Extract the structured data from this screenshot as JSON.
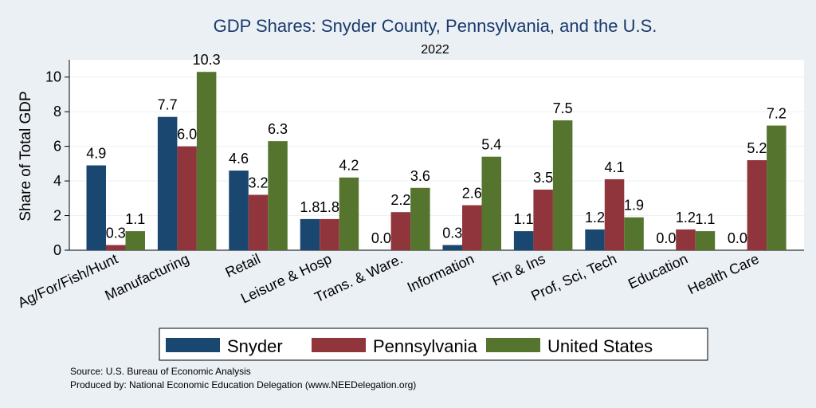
{
  "chart_data": {
    "type": "bar",
    "title": "GDP Shares: Snyder County, Pennsylvania, and the U.S.",
    "subtitle": "2022",
    "xlabel": "",
    "ylabel": "Share of Total GDP",
    "ylim": [
      0,
      11
    ],
    "yticks": [
      0,
      2,
      4,
      6,
      8,
      10
    ],
    "grid": true,
    "legend_position": "bottom",
    "categories": [
      "Ag/For/Fish/Hunt",
      "Manufacturing",
      "Retail",
      "Leisure & Hosp",
      "Trans. & Ware.",
      "Information",
      "Fin & Ins",
      "Prof, Sci, Tech",
      "Education",
      "Health Care"
    ],
    "series": [
      {
        "name": "Snyder",
        "color": "#1a476f",
        "values": [
          4.9,
          7.7,
          4.6,
          1.8,
          0.0,
          0.3,
          1.1,
          1.2,
          0.0,
          0.0
        ],
        "labels": [
          "4.9",
          "7.7",
          "4.6",
          "1.8",
          "0.0",
          "0.3",
          "1.1",
          "1.2",
          "0.0",
          "0.0"
        ]
      },
      {
        "name": "Pennsylvania",
        "color": "#90353b",
        "values": [
          0.3,
          6.0,
          3.2,
          1.8,
          2.2,
          2.6,
          3.5,
          4.1,
          1.2,
          5.2
        ],
        "labels": [
          "0.3",
          "6.0",
          "3.2",
          "1.8",
          "2.2",
          "2.6",
          "3.5",
          "4.1",
          "1.2",
          "5.2"
        ]
      },
      {
        "name": "United States",
        "color": "#55752f",
        "values": [
          1.1,
          10.3,
          6.3,
          4.2,
          3.6,
          5.4,
          7.5,
          1.9,
          1.1,
          7.2
        ],
        "labels": [
          "1.1",
          "10.3",
          "6.3",
          "4.2",
          "3.6",
          "5.4",
          "7.5",
          "1.9",
          "1.1",
          "7.2"
        ]
      }
    ]
  },
  "notes": {
    "source": "Source: U.S. Bureau of Economic Analysis",
    "produced": "Produced by: National Economic Education Delegation (www.NEEDelegation.org)"
  }
}
